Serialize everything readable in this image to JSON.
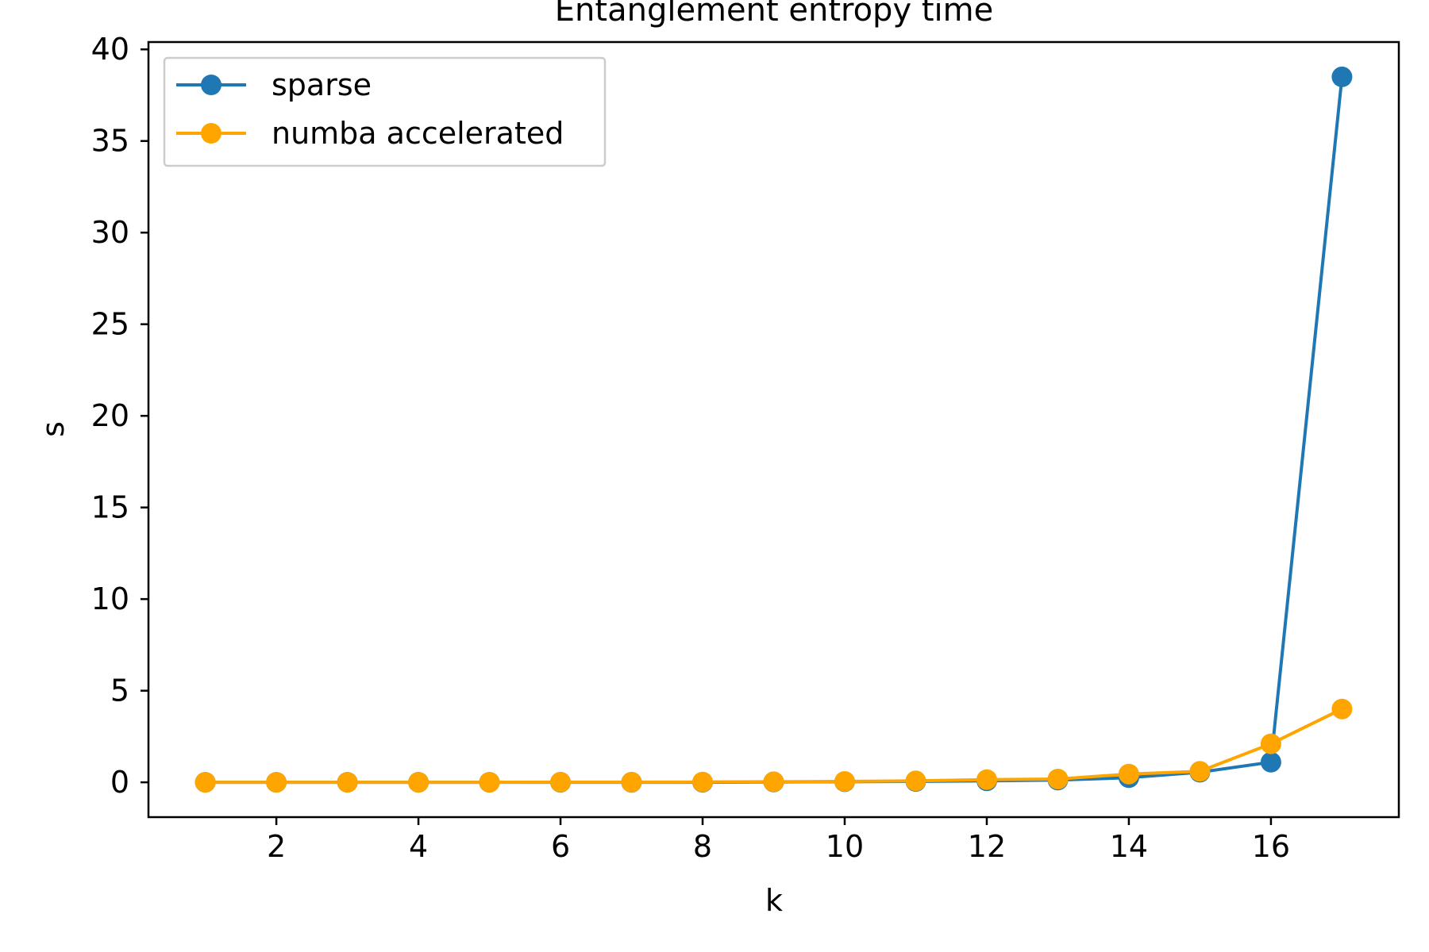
{
  "chart_data": {
    "type": "line",
    "title": "Entanglement entropy time",
    "xlabel": "k",
    "ylabel": "s",
    "xlim": [
      0.2,
      17.8
    ],
    "ylim": [
      -1.9,
      40.4
    ],
    "xticks": [
      2,
      4,
      6,
      8,
      10,
      12,
      14,
      16
    ],
    "yticks": [
      0,
      5,
      10,
      15,
      20,
      25,
      30,
      35,
      40
    ],
    "grid": false,
    "legend_position": "top-left",
    "x": [
      1,
      2,
      3,
      4,
      5,
      6,
      7,
      8,
      9,
      10,
      11,
      12,
      13,
      14,
      15,
      16,
      17
    ],
    "series": [
      {
        "name": "sparse",
        "color": "#1f77b4",
        "marker": "circle",
        "values": [
          0.0,
          0.0,
          0.0,
          0.0,
          0.0,
          0.0,
          0.0,
          0.0,
          0.02,
          0.03,
          0.05,
          0.08,
          0.12,
          0.25,
          0.55,
          1.1,
          38.5
        ]
      },
      {
        "name": "numba accelerated",
        "color": "#ffa500",
        "marker": "circle",
        "values": [
          0.0,
          0.0,
          0.0,
          0.0,
          0.0,
          0.01,
          0.01,
          0.02,
          0.03,
          0.05,
          0.08,
          0.15,
          0.18,
          0.45,
          0.6,
          2.1,
          4.0
        ]
      }
    ]
  }
}
